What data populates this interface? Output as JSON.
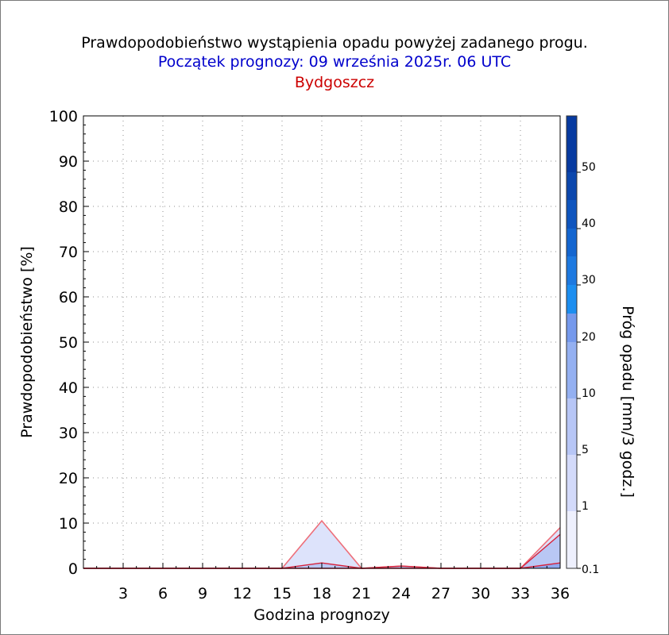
{
  "chart_data": {
    "type": "area",
    "title": "Prawdopodobieństwo wystąpienia opadu powyżej zadanego progu.",
    "subtitle": "Początek prognozy: 09 września 2025r. 06 UTC",
    "station": "Bydgoszcz",
    "xlabel": "Godzina prognozy",
    "ylabel": "Prawdopodobieństwo [%]",
    "colorbar_label": "Próg opadu [mm/3 godz.]",
    "xlim": [
      0,
      36
    ],
    "ylim": [
      0,
      100
    ],
    "x_ticks": [
      3,
      6,
      9,
      12,
      15,
      18,
      21,
      24,
      27,
      30,
      33,
      36
    ],
    "y_ticks": [
      0,
      10,
      20,
      30,
      40,
      50,
      60,
      70,
      80,
      90,
      100
    ],
    "grid": true,
    "x": [
      0,
      3,
      6,
      9,
      12,
      15,
      18,
      21,
      24,
      27,
      30,
      33,
      36
    ],
    "series": [
      {
        "name": "0.1",
        "color": "#dde3fb",
        "values": [
          0,
          0,
          0,
          0,
          0,
          0,
          10.5,
          0,
          0.5,
          0,
          0,
          0,
          9
        ]
      },
      {
        "name": "1",
        "color": "#b9c7f4",
        "values": [
          0,
          0,
          0,
          0,
          0,
          0,
          1.2,
          0,
          0.5,
          0,
          0,
          0,
          7.5
        ]
      },
      {
        "name": "5",
        "color": "#8fa8ee",
        "values": [
          0,
          0,
          0,
          0,
          0,
          0,
          0,
          0,
          0,
          0,
          0,
          0,
          1.2
        ]
      }
    ],
    "colorbar": {
      "ticks": [
        "0.1",
        "1",
        "5",
        "10",
        "20",
        "30",
        "40",
        "50"
      ],
      "colors": [
        "#eef0fd",
        "#d3dafa",
        "#b7c6f6",
        "#94b0f1",
        "#7599ec",
        "#1c8ef0",
        "#1d79e0",
        "#1466d0",
        "#0f55be",
        "#0b47ad",
        "#073aa0"
      ]
    }
  }
}
